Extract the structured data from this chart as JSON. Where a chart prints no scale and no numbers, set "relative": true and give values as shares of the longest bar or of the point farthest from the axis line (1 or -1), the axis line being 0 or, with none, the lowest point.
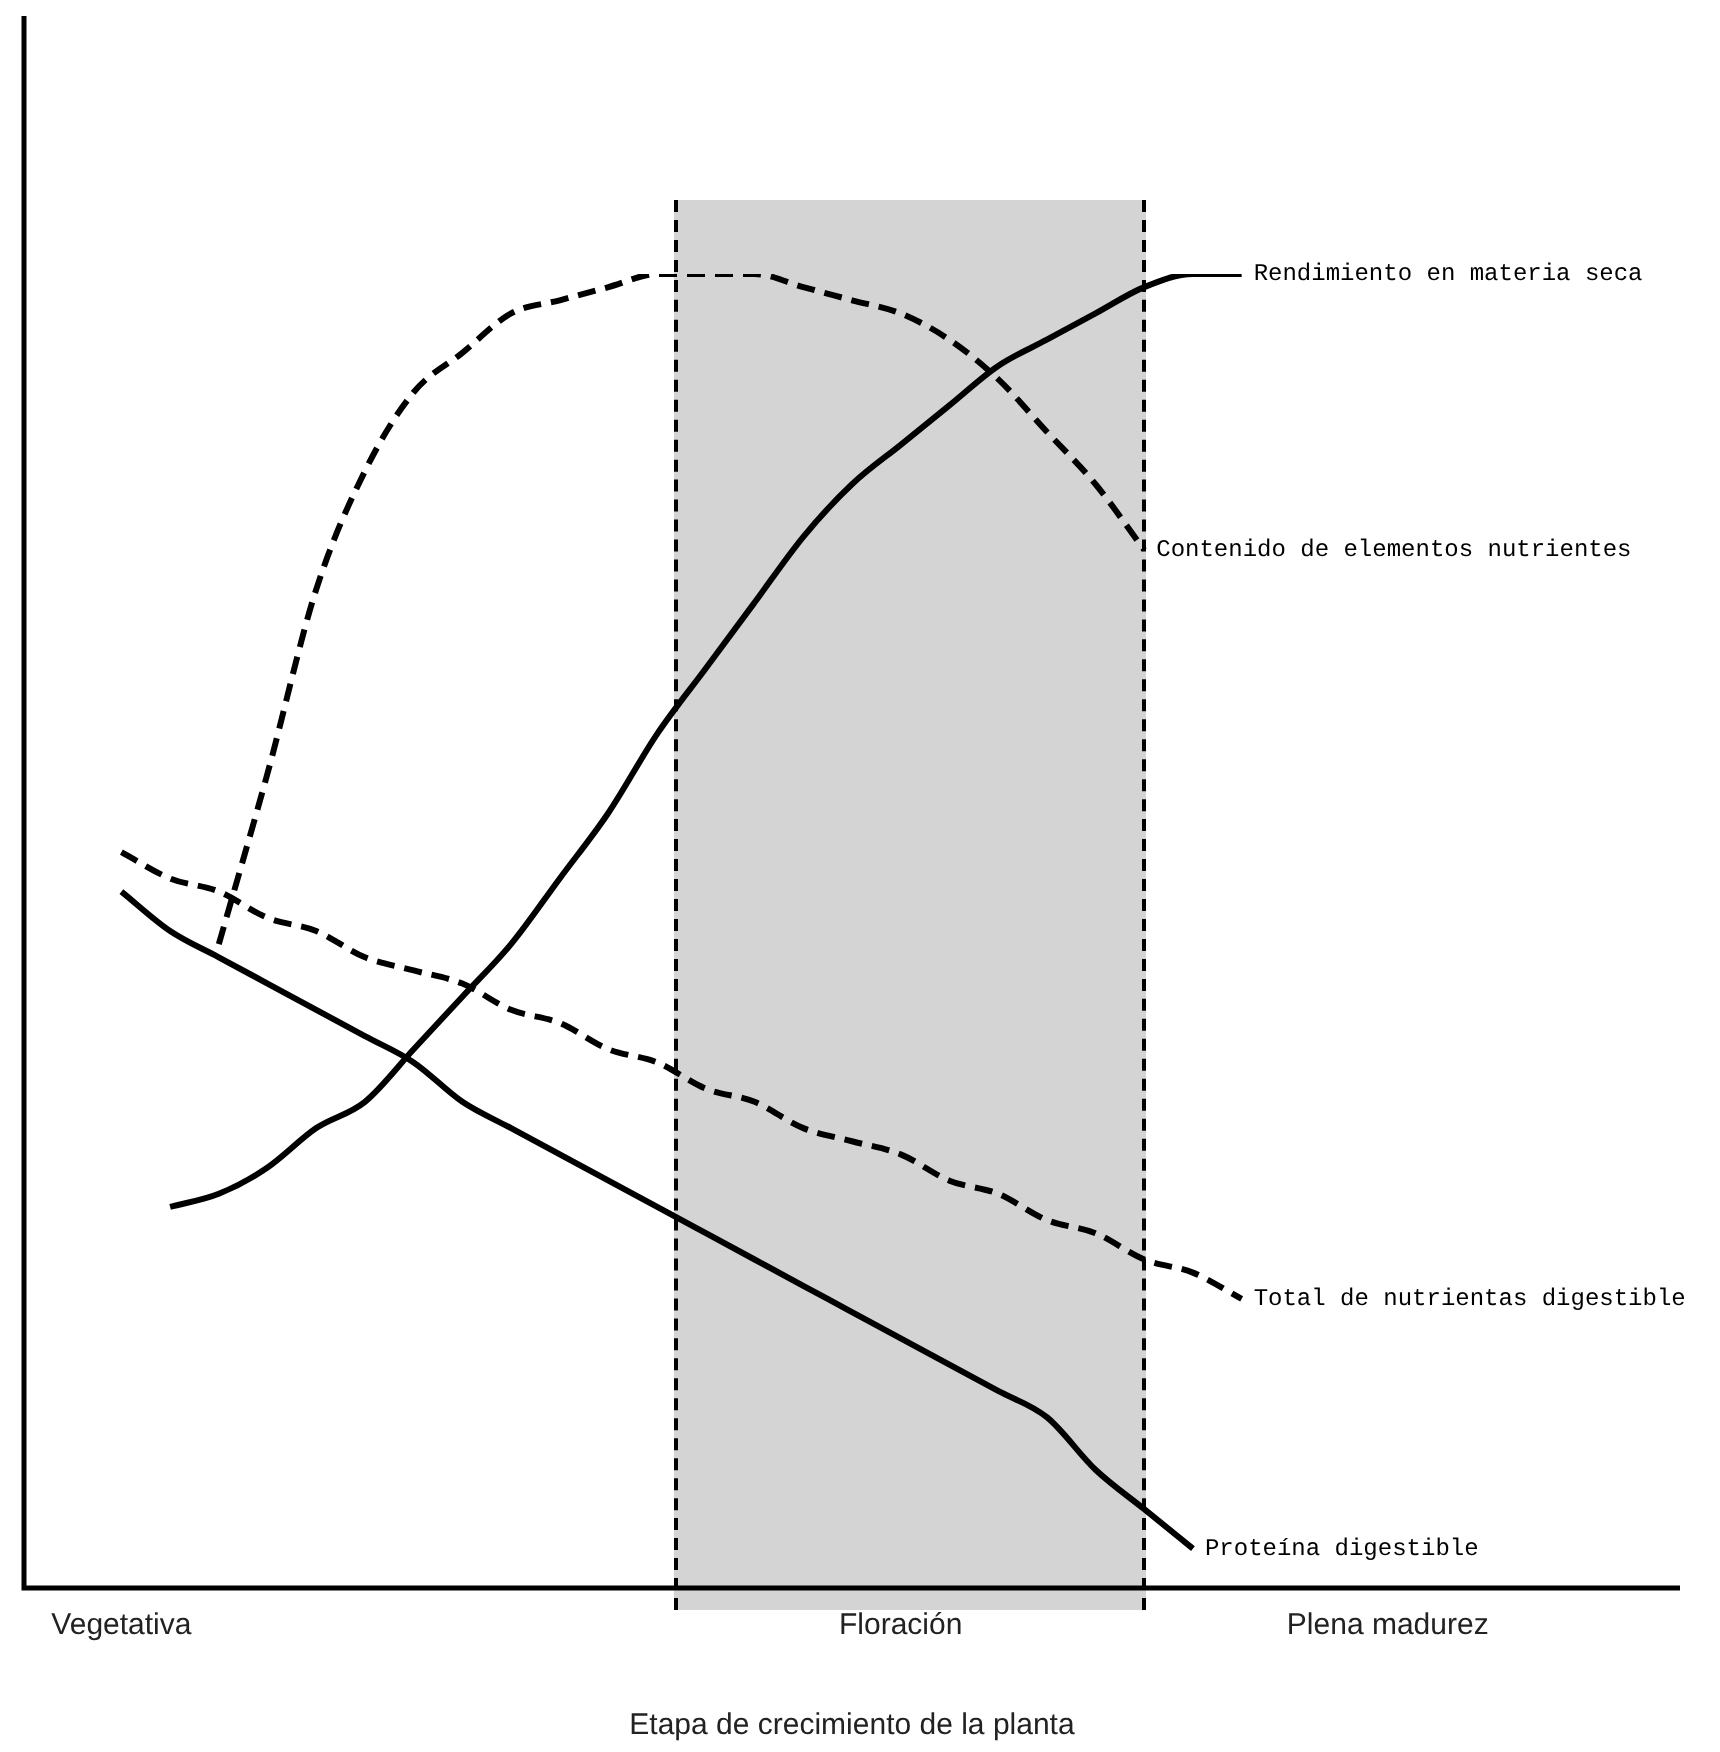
{
  "chart_data": {
    "type": "line",
    "relative": true,
    "xlabel": "Etapa de crecimiento de la planta",
    "categories": [
      null,
      null,
      "Vegetativa",
      null,
      null,
      null,
      null,
      null,
      null,
      null,
      null,
      null,
      null,
      null,
      null,
      null,
      null,
      null,
      "Floración",
      null,
      null,
      null,
      null,
      null,
      null,
      null,
      null,
      null,
      "Plena madurez",
      null,
      null,
      null,
      null,
      null,
      null
    ],
    "legend": false,
    "marker": "none",
    "series": [
      {
        "name": "Rendimiento en materia seca",
        "color": "#000000",
        "line_style": "solid",
        "values": [
          null,
          null,
          null,
          0.29,
          0.3,
          0.32,
          0.35,
          0.37,
          0.41,
          0.45,
          0.49,
          0.54,
          0.59,
          0.65,
          0.7,
          0.75,
          0.8,
          0.84,
          0.87,
          0.9,
          0.93,
          0.95,
          0.97,
          0.99,
          1.0,
          1.0,
          null,
          null,
          null,
          null,
          null,
          null,
          null,
          null,
          null
        ]
      },
      {
        "name": "Contenido de elementos nutrientes",
        "color": "#000000",
        "line_style": "dashed",
        "values": [
          null,
          null,
          null,
          null,
          0.49,
          0.62,
          0.76,
          0.85,
          0.91,
          0.94,
          0.97,
          0.98,
          0.99,
          1.0,
          1.0,
          1.0,
          0.99,
          0.98,
          0.97,
          0.95,
          0.92,
          0.88,
          0.84,
          0.79,
          null,
          null,
          null,
          null,
          null,
          null,
          null,
          null,
          null,
          null,
          null
        ]
      },
      {
        "name": "Total de nutrientas digestible",
        "color": "#000000",
        "line_style": "dashed",
        "values": [
          null,
          null,
          0.56,
          0.54,
          0.53,
          0.51,
          0.5,
          0.48,
          0.47,
          0.46,
          0.44,
          0.43,
          0.41,
          0.4,
          0.38,
          0.37,
          0.35,
          0.34,
          0.33,
          0.31,
          0.3,
          0.28,
          0.27,
          0.25,
          0.24,
          0.22,
          null,
          null,
          null,
          null,
          null,
          null,
          null,
          null,
          null
        ]
      },
      {
        "name": "Proteína digestible",
        "color": "#000000",
        "line_style": "solid",
        "values": [
          null,
          null,
          0.53,
          0.5,
          0.48,
          0.46,
          0.44,
          0.42,
          0.4,
          0.37,
          0.35,
          0.33,
          0.31,
          0.29,
          0.27,
          0.25,
          0.23,
          0.21,
          0.19,
          0.17,
          0.15,
          0.13,
          0.09,
          0.06,
          0.03,
          null,
          null,
          null,
          null,
          null,
          null,
          null,
          null,
          null,
          null
        ]
      }
    ]
  }
}
